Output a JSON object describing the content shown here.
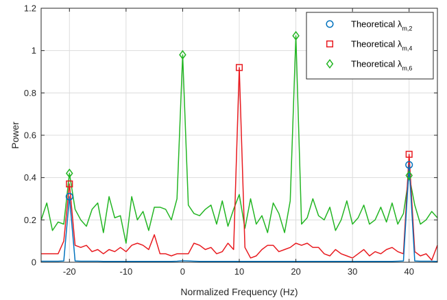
{
  "chart_data": {
    "type": "line",
    "xlabel": "Normalized Frequency (Hz)",
    "ylabel": "Power",
    "xlim": [
      -25,
      45
    ],
    "ylim": [
      0,
      1.2
    ],
    "xticks": [
      -20,
      -10,
      0,
      10,
      20,
      30,
      40
    ],
    "yticks": [
      0,
      0.2,
      0.4,
      0.6,
      0.8,
      1,
      1.2
    ],
    "ytick_labels": [
      "0",
      "0.2",
      "0.4",
      "0.6",
      "0.8",
      "1",
      "1.2"
    ],
    "grid": true,
    "legend_position": "top-right",
    "legend": [
      {
        "label": "Theoretical λ",
        "subscript": "m,2",
        "marker": "circle",
        "color": "#0072BD"
      },
      {
        "label": "Theoretical λ",
        "subscript": "m,4",
        "marker": "square",
        "color": "#E8191E"
      },
      {
        "label": "Theoretical λ",
        "subscript": "m,6",
        "marker": "diamond",
        "color": "#22B522"
      }
    ],
    "series": [
      {
        "color": "#0072BD",
        "marker": "circle",
        "x": [
          -25,
          -24,
          -23,
          -22,
          -21,
          -20,
          -19,
          -18,
          -17,
          -16,
          -15,
          -14,
          -13,
          -12,
          -11,
          -10,
          -9,
          -8,
          -7,
          -6,
          -5,
          -4,
          -3,
          -2,
          -1,
          0,
          1,
          2,
          3,
          4,
          5,
          6,
          7,
          8,
          9,
          10,
          11,
          12,
          13,
          14,
          15,
          16,
          17,
          18,
          19,
          20,
          21,
          22,
          23,
          24,
          25,
          26,
          27,
          28,
          29,
          30,
          31,
          32,
          33,
          34,
          35,
          36,
          37,
          38,
          39,
          40,
          41,
          42,
          43,
          44,
          45
        ],
        "y": [
          0.005,
          0.005,
          0.005,
          0.005,
          0.006,
          0.31,
          0.006,
          0.005,
          0.005,
          0.005,
          0.005,
          0.004,
          0.004,
          0.004,
          0.004,
          0.004,
          0.004,
          0.004,
          0.004,
          0.004,
          0.004,
          0.004,
          0.004,
          0.004,
          0.005,
          0.007,
          0.006,
          0.005,
          0.004,
          0.004,
          0.004,
          0.004,
          0.004,
          0.004,
          0.004,
          0.004,
          0.004,
          0.004,
          0.004,
          0.004,
          0.004,
          0.004,
          0.004,
          0.004,
          0.004,
          0.004,
          0.004,
          0.004,
          0.004,
          0.004,
          0.004,
          0.004,
          0.004,
          0.004,
          0.004,
          0.004,
          0.004,
          0.004,
          0.004,
          0.004,
          0.004,
          0.004,
          0.004,
          0.005,
          0.006,
          0.46,
          0.006,
          0.005,
          0.005,
          0.005,
          0.004
        ],
        "markers": [
          {
            "x": -20,
            "y": 0.31
          },
          {
            "x": 40,
            "y": 0.46
          }
        ]
      },
      {
        "color": "#E8191E",
        "marker": "square",
        "x": [
          -25,
          -24,
          -23,
          -22,
          -21,
          -20,
          -19,
          -18,
          -17,
          -16,
          -15,
          -14,
          -13,
          -12,
          -11,
          -10,
          -9,
          -8,
          -7,
          -6,
          -5,
          -4,
          -3,
          -2,
          -1,
          0,
          1,
          2,
          3,
          4,
          5,
          6,
          7,
          8,
          9,
          10,
          11,
          12,
          13,
          14,
          15,
          16,
          17,
          18,
          19,
          20,
          21,
          22,
          23,
          24,
          25,
          26,
          27,
          28,
          29,
          30,
          31,
          32,
          33,
          34,
          35,
          36,
          37,
          38,
          39,
          40,
          41,
          42,
          43,
          44,
          45
        ],
        "y": [
          0.04,
          0.04,
          0.04,
          0.04,
          0.1,
          0.37,
          0.08,
          0.07,
          0.08,
          0.05,
          0.06,
          0.04,
          0.06,
          0.05,
          0.07,
          0.05,
          0.08,
          0.09,
          0.08,
          0.06,
          0.13,
          0.04,
          0.04,
          0.03,
          0.04,
          0.04,
          0.04,
          0.09,
          0.08,
          0.06,
          0.07,
          0.04,
          0.05,
          0.09,
          0.06,
          0.92,
          0.07,
          0.02,
          0.03,
          0.06,
          0.08,
          0.08,
          0.05,
          0.06,
          0.07,
          0.09,
          0.08,
          0.09,
          0.07,
          0.07,
          0.04,
          0.03,
          0.06,
          0.04,
          0.03,
          0.02,
          0.04,
          0.06,
          0.03,
          0.05,
          0.04,
          0.06,
          0.07,
          0.05,
          0.04,
          0.51,
          0.05,
          0.03,
          0.04,
          0.01,
          0.08
        ],
        "markers": [
          {
            "x": -20,
            "y": 0.37
          },
          {
            "x": 10,
            "y": 0.92
          },
          {
            "x": 40,
            "y": 0.51
          }
        ]
      },
      {
        "color": "#22B522",
        "marker": "diamond",
        "x": [
          -25,
          -24,
          -23,
          -22,
          -21,
          -20,
          -19,
          -18,
          -17,
          -16,
          -15,
          -14,
          -13,
          -12,
          -11,
          -10,
          -9,
          -8,
          -7,
          -6,
          -5,
          -4,
          -3,
          -2,
          -1,
          0,
          1,
          2,
          3,
          4,
          5,
          6,
          7,
          8,
          9,
          10,
          11,
          12,
          13,
          14,
          15,
          16,
          17,
          18,
          19,
          20,
          21,
          22,
          23,
          24,
          25,
          26,
          27,
          28,
          29,
          30,
          31,
          32,
          33,
          34,
          35,
          36,
          37,
          38,
          39,
          40,
          41,
          42,
          43,
          44,
          45
        ],
        "y": [
          0.2,
          0.28,
          0.15,
          0.19,
          0.18,
          0.42,
          0.25,
          0.2,
          0.17,
          0.25,
          0.28,
          0.14,
          0.31,
          0.21,
          0.22,
          0.09,
          0.31,
          0.2,
          0.24,
          0.15,
          0.26,
          0.26,
          0.25,
          0.2,
          0.3,
          0.98,
          0.27,
          0.23,
          0.22,
          0.25,
          0.27,
          0.18,
          0.29,
          0.17,
          0.25,
          0.32,
          0.16,
          0.3,
          0.18,
          0.22,
          0.14,
          0.28,
          0.23,
          0.14,
          0.29,
          1.07,
          0.18,
          0.21,
          0.3,
          0.22,
          0.2,
          0.26,
          0.15,
          0.2,
          0.29,
          0.18,
          0.21,
          0.27,
          0.18,
          0.2,
          0.26,
          0.19,
          0.28,
          0.18,
          0.23,
          0.41,
          0.27,
          0.18,
          0.2,
          0.24,
          0.21
        ],
        "markers": [
          {
            "x": -20,
            "y": 0.42
          },
          {
            "x": 0,
            "y": 0.98
          },
          {
            "x": 20,
            "y": 1.07
          },
          {
            "x": 40,
            "y": 0.41
          }
        ]
      }
    ]
  }
}
